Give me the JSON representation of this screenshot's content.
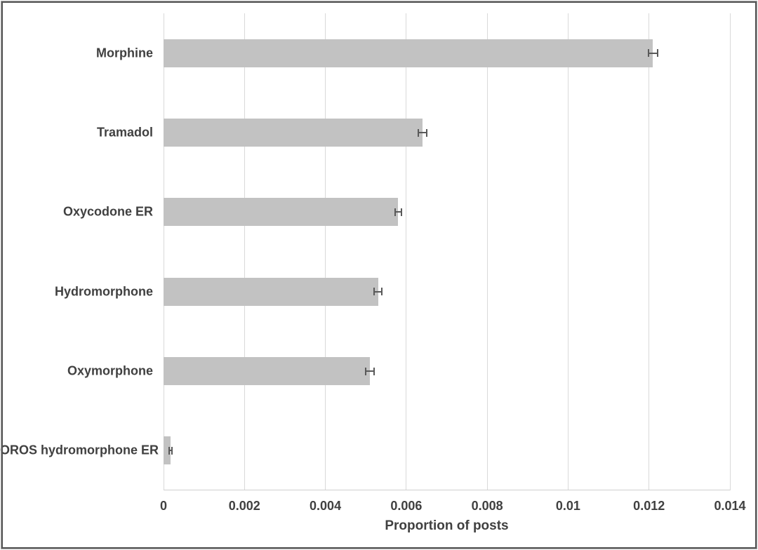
{
  "chart_data": {
    "type": "bar",
    "orientation": "horizontal",
    "title": "",
    "categories": [
      "Morphine",
      "Tramadol",
      "Oxycodone ER",
      "Hydromorphone",
      "Oxymorphone",
      "OROS hydromorphone ER"
    ],
    "values": [
      0.0121,
      0.0064,
      0.0058,
      0.0053,
      0.0051,
      0.00017
    ],
    "errors": [
      0.00012,
      0.0001,
      8e-05,
      0.0001,
      0.0001,
      3e-05
    ],
    "xlabel": "Proportion of posts",
    "ylabel": "",
    "xlim": [
      0,
      0.014
    ],
    "xticks": [
      0,
      0.002,
      0.004,
      0.006,
      0.008,
      0.01,
      0.012,
      0.014
    ],
    "xtick_labels": [
      "0",
      "0.002",
      "0.004",
      "0.006",
      "0.008",
      "0.01",
      "0.012",
      "0.014"
    ],
    "grid": true,
    "legend": "none",
    "bar_color": "#c2c2c2",
    "error_bar_color": "#595959",
    "gridline_color": "#d9d9d9",
    "text_color": "#404040",
    "frame_color": "#555555"
  }
}
